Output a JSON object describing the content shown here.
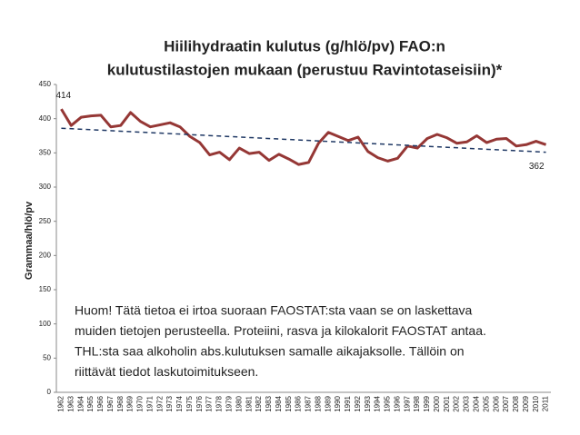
{
  "chart_data": {
    "type": "line",
    "title_lines": [
      "Hiilihydraatin kulutus (g/hlö/pv) FAO:n",
      "kulutustilastojen mukaan (perustuu Ravintotaseisiin)*"
    ],
    "y_label": "Grammaa/hlö/pv",
    "categories": [
      "1962",
      "1963",
      "1964",
      "1965",
      "1966",
      "1967",
      "1968",
      "1969",
      "1970",
      "1971",
      "1972",
      "1973",
      "1974",
      "1975",
      "1976",
      "1977",
      "1978",
      "1979",
      "1980",
      "1981",
      "1982",
      "1983",
      "1984",
      "1985",
      "1986",
      "1987",
      "1988",
      "1989",
      "1990",
      "1991",
      "1992",
      "1993",
      "1994",
      "1995",
      "1996",
      "1997",
      "1998",
      "1999",
      "2000",
      "2001",
      "2002",
      "2003",
      "2004",
      "2005",
      "2006",
      "2007",
      "2008",
      "2009",
      "2010",
      "2011"
    ],
    "series": [
      {
        "color": "#953735",
        "values": [
          414,
          390,
          402,
          404,
          405,
          388,
          390,
          409,
          396,
          388,
          391,
          394,
          388,
          374,
          365,
          347,
          351,
          340,
          357,
          349,
          351,
          339,
          348,
          341,
          333,
          336,
          364,
          380,
          374,
          368,
          373,
          352,
          343,
          338,
          342,
          360,
          357,
          371,
          377,
          372,
          364,
          366,
          375,
          365,
          370,
          371,
          360,
          362,
          367,
          362
        ],
        "value_labels": [
          "414",
          null,
          null,
          null,
          null,
          null,
          null,
          null,
          null,
          null,
          null,
          null,
          null,
          null,
          null,
          null,
          null,
          null,
          null,
          null,
          null,
          null,
          null,
          null,
          null,
          null,
          null,
          null,
          null,
          null,
          null,
          null,
          null,
          null,
          null,
          null,
          null,
          null,
          null,
          null,
          null,
          null,
          null,
          null,
          null,
          null,
          null,
          null,
          null,
          "362"
        ]
      }
    ],
    "trendline": {
      "color": "#1f3864",
      "values": [
        386,
        351
      ]
    },
    "ylim": [
      0,
      450
    ],
    "yticks": [
      0,
      50,
      100,
      150,
      200,
      250,
      300,
      350,
      400,
      450
    ],
    "note_lines": [
      "Huom! Tätä tietoa ei irtoa suoraan FAOSTAT:sta vaan se on laskettava",
      "muiden tietojen perusteella. Proteiini, rasva ja kilokalorit FAOSTAT antaa.",
      "THL:sta saa alkoholin abs.kulutuksen samalle aikajaksolle. Tällöin on",
      "riittävät tiedot laskutoimitukseen."
    ]
  }
}
